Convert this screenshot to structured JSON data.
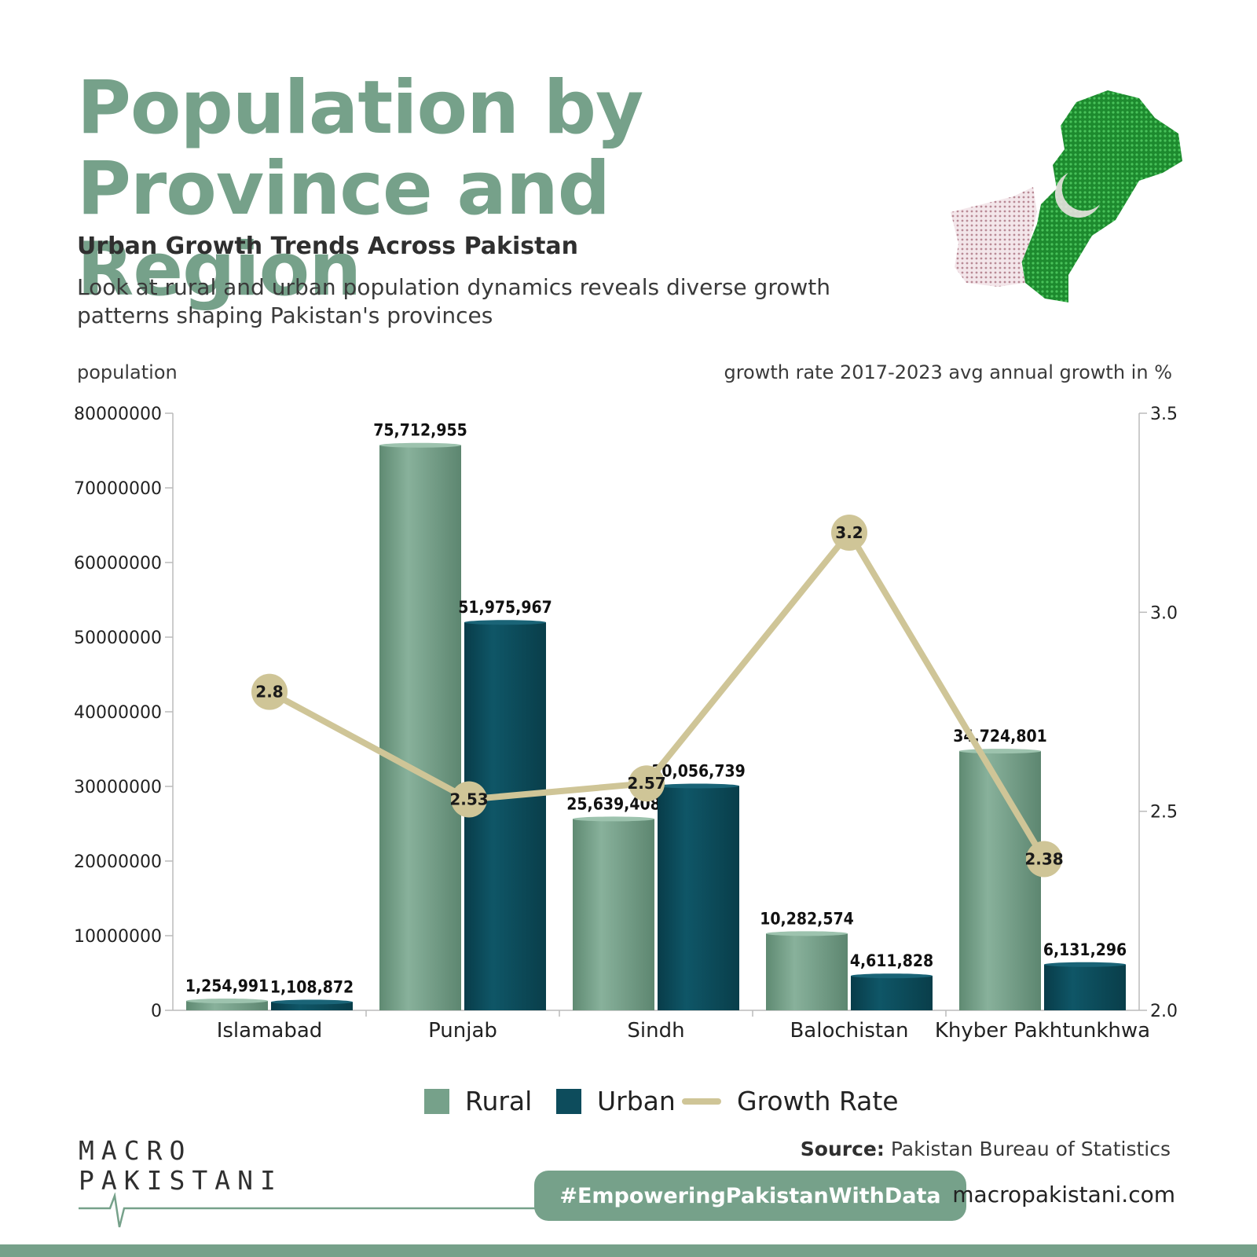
{
  "header": {
    "title": "Population by Province and Region",
    "subtitle": "Urban Growth Trends Across Pakistan",
    "description": "Look at rural and urban population dynamics reveals diverse growth patterns shaping Pakistan's provinces"
  },
  "chart_data": {
    "type": "bar",
    "ylabel": "population",
    "y2label": "growth rate 2017-2023 avg annual growth in %",
    "categories": [
      "Islamabad",
      "Punjab",
      "Sindh",
      "Balochistan",
      "Khyber Pakhtunkhwa"
    ],
    "series": [
      {
        "name": "Rural",
        "type": "bar",
        "axis": "left",
        "color": "#76a18a",
        "values": [
          1254991,
          75712955,
          25639408,
          10282574,
          34724801
        ],
        "labels": [
          "1,254,991",
          "75,712,955",
          "25,639,408",
          "10,282,574",
          "34,724,801"
        ]
      },
      {
        "name": "Urban",
        "type": "bar",
        "axis": "left",
        "color": "#0d4c5c",
        "values": [
          1108872,
          51975967,
          30056739,
          4611828,
          6131296
        ],
        "labels": [
          "1,108,872",
          "51,975,967",
          "30,056,739",
          "4,611,828",
          "6,131,296"
        ]
      },
      {
        "name": "Growth Rate",
        "type": "line",
        "axis": "right",
        "color": "#cfc597",
        "values": [
          2.8,
          2.53,
          2.57,
          3.2,
          2.38
        ],
        "labels": [
          "2.8",
          "2.53",
          "2.57",
          "3.2",
          "2.38"
        ]
      }
    ],
    "ylim": [
      0,
      80000000
    ],
    "yticks": [
      "0",
      "10000000",
      "20000000",
      "30000000",
      "40000000",
      "50000000",
      "60000000",
      "70000000",
      "80000000"
    ],
    "y2lim": [
      2.0,
      3.5
    ],
    "y2ticks": [
      "2.0",
      "2.5",
      "3.0",
      "3.5"
    ],
    "legend_position": "bottom-center",
    "grid": false
  },
  "footer": {
    "logo_line1": "MACRO",
    "logo_line2": "PAKISTANI",
    "source_label": "Source:",
    "source_value": "Pakistan Bureau of Statistics",
    "hashtag": "#EmpoweringPakistanWithData",
    "website": "macropakistani.com"
  }
}
